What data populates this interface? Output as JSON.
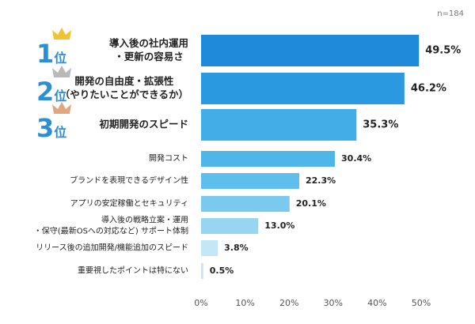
{
  "chart_data": {
    "type": "hbar",
    "note": "n=184",
    "categories": [
      "導入後の社内運用\n・更新の容易さ",
      "開発の自由度・拡張性\n（やりたいことができるか）",
      "初期開発のスピード",
      "開発コスト",
      "ブランドを表現できるデザイン性",
      "アプリの安定稼働とセキュリティ",
      "導入後の戦略立案・運用\n・保守(最新OSへの対応など) サポート体制",
      "リリース後の追加開発/機能追加のスピード",
      "重要視したポイントは特にない"
    ],
    "values": [
      49.5,
      46.2,
      35.3,
      30.4,
      22.3,
      20.1,
      13.0,
      3.8,
      0.5
    ],
    "value_labels": [
      "49.5%",
      "46.2%",
      "35.3%",
      "30.4%",
      "22.3%",
      "20.1%",
      "13.0%",
      "3.8%",
      "0.5%"
    ],
    "colors": [
      "#1f8ad9",
      "#2b99e0",
      "#43ade8",
      "#4fb6ea",
      "#5fbfec",
      "#79caee",
      "#98d5f1",
      "#c3e7f7",
      "#cfe3ee"
    ],
    "rank_badges": [
      {
        "rank": "1",
        "unit": "位"
      },
      {
        "rank": "2",
        "unit": "位"
      },
      {
        "rank": "3",
        "unit": "位"
      }
    ],
    "xlim": [
      0,
      50
    ],
    "xticks": [
      {
        "value": 0,
        "label": "0%"
      },
      {
        "value": 10,
        "label": "10%"
      },
      {
        "value": 20,
        "label": "20%"
      },
      {
        "value": 30,
        "label": "30%"
      },
      {
        "value": 40,
        "label": "40%"
      },
      {
        "value": 50,
        "label": "50%"
      }
    ]
  }
}
